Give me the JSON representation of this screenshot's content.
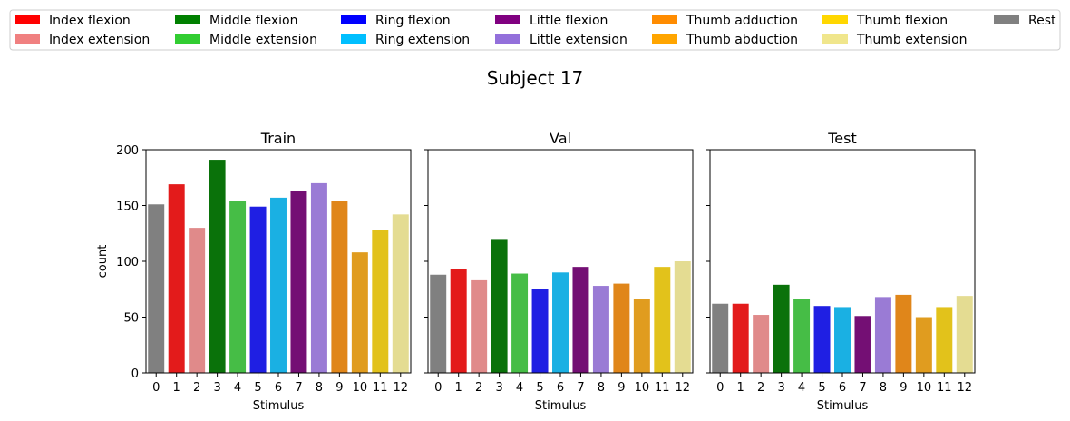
{
  "suptitle": "Subject 17",
  "legend": {
    "placement": "top",
    "entries": [
      {
        "label": "Index flexion",
        "color": "#ff0000"
      },
      {
        "label": "Index extension",
        "color": "#f08080"
      },
      {
        "label": "Middle flexion",
        "color": "#008000"
      },
      {
        "label": "Middle extension",
        "color": "#32cd32"
      },
      {
        "label": "Ring flexion",
        "color": "#0000ff"
      },
      {
        "label": "Ring extension",
        "color": "#00bfff"
      },
      {
        "label": "Little flexion",
        "color": "#800080"
      },
      {
        "label": "Little extension",
        "color": "#9370db"
      },
      {
        "label": "Thumb adduction",
        "color": "#ff8c00"
      },
      {
        "label": "Thumb abduction",
        "color": "#ffa500"
      },
      {
        "label": "Thumb flexion",
        "color": "#ffd700"
      },
      {
        "label": "Thumb extension",
        "color": "#f0e68c"
      },
      {
        "label": "Rest",
        "color": "#808080"
      }
    ]
  },
  "chart_data": [
    {
      "type": "bar",
      "title": "Train",
      "xlabel": "Stimulus",
      "ylabel": "count",
      "ylim": [
        0,
        200
      ],
      "yticks": [
        0,
        50,
        100,
        150,
        200
      ],
      "show_ytick_labels": true,
      "grid": false,
      "categories": [
        "0",
        "1",
        "2",
        "3",
        "4",
        "5",
        "6",
        "7",
        "8",
        "9",
        "10",
        "11",
        "12"
      ],
      "values": [
        151,
        169,
        130,
        191,
        154,
        149,
        157,
        163,
        170,
        154,
        108,
        128,
        142
      ],
      "colors": [
        "#808080",
        "#e31b1b",
        "#e08a8a",
        "#0a720a",
        "#46bd46",
        "#1f1fe3",
        "#1ab0e3",
        "#740f74",
        "#9a7bd5",
        "#e0861a",
        "#e09c1f",
        "#e2c21b",
        "#e4dc92"
      ]
    },
    {
      "type": "bar",
      "title": "Val",
      "xlabel": "Stimulus",
      "ylabel": "",
      "ylim": [
        0,
        200
      ],
      "yticks": [
        0,
        50,
        100,
        150,
        200
      ],
      "show_ytick_labels": false,
      "grid": false,
      "categories": [
        "0",
        "1",
        "2",
        "3",
        "4",
        "5",
        "6",
        "7",
        "8",
        "9",
        "10",
        "11",
        "12"
      ],
      "values": [
        88,
        93,
        83,
        120,
        89,
        75,
        90,
        95,
        78,
        80,
        66,
        95,
        100
      ],
      "colors": [
        "#808080",
        "#e31b1b",
        "#e08a8a",
        "#0a720a",
        "#46bd46",
        "#1f1fe3",
        "#1ab0e3",
        "#740f74",
        "#9a7bd5",
        "#e0861a",
        "#e09c1f",
        "#e2c21b",
        "#e4dc92"
      ]
    },
    {
      "type": "bar",
      "title": "Test",
      "xlabel": "Stimulus",
      "ylabel": "",
      "ylim": [
        0,
        200
      ],
      "yticks": [
        0,
        50,
        100,
        150,
        200
      ],
      "show_ytick_labels": false,
      "grid": false,
      "categories": [
        "0",
        "1",
        "2",
        "3",
        "4",
        "5",
        "6",
        "7",
        "8",
        "9",
        "10",
        "11",
        "12"
      ],
      "values": [
        62,
        62,
        52,
        79,
        66,
        60,
        59,
        51,
        68,
        70,
        50,
        59,
        69
      ],
      "colors": [
        "#808080",
        "#e31b1b",
        "#e08a8a",
        "#0a720a",
        "#46bd46",
        "#1f1fe3",
        "#1ab0e3",
        "#740f74",
        "#9a7bd5",
        "#e0861a",
        "#e09c1f",
        "#e2c21b",
        "#e4dc92"
      ]
    }
  ]
}
